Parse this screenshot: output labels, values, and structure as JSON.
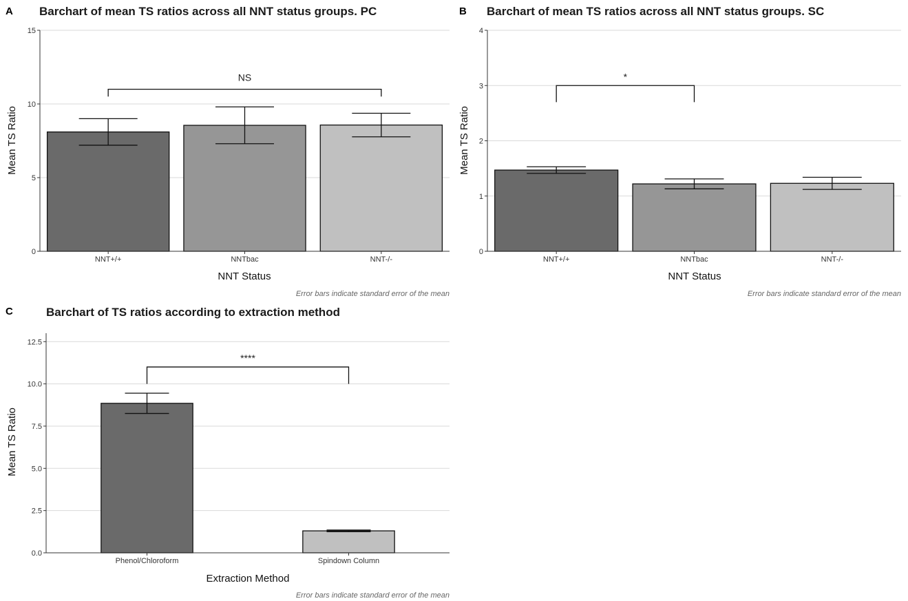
{
  "chart_data": [
    {
      "panel": "A",
      "type": "bar",
      "title": "Barchart of mean TS ratios across all NNT status groups. PC",
      "xlabel": "NNT Status",
      "ylabel": "Mean TS Ratio",
      "ylim": [
        0,
        15
      ],
      "yticks": [
        "0",
        "5",
        "10",
        "15"
      ],
      "categories": [
        "NNT+/+",
        "NNTbac",
        "NNT-/-"
      ],
      "values": [
        8.1,
        8.55,
        8.57
      ],
      "error": [
        0.9,
        1.25,
        0.8
      ],
      "bar_colors": [
        "#6a6a6a",
        "#969696",
        "#c0c0c0"
      ],
      "grid": "horizontal",
      "significance": {
        "label": "NS",
        "from": 0,
        "to": 2,
        "y": 11.0,
        "drop_to": 10.5
      },
      "caption": "Error bars indicate standard error of the mean"
    },
    {
      "panel": "B",
      "type": "bar",
      "title": "Barchart of mean TS ratios across all NNT status groups. SC",
      "xlabel": "NNT Status",
      "ylabel": "Mean TS Ratio",
      "ylim": [
        0,
        4
      ],
      "yticks": [
        "0",
        "1",
        "2",
        "3",
        "4"
      ],
      "categories": [
        "NNT+/+",
        "NNTbac",
        "NNT-/-"
      ],
      "values": [
        1.47,
        1.22,
        1.23
      ],
      "error": [
        0.06,
        0.09,
        0.11
      ],
      "bar_colors": [
        "#6a6a6a",
        "#969696",
        "#c0c0c0"
      ],
      "grid": "horizontal",
      "significance": {
        "label": "*",
        "from": 0,
        "to": 1,
        "y": 3.0,
        "drop_to": 2.7
      },
      "caption": "Error bars indicate standard error of the mean"
    },
    {
      "panel": "C",
      "type": "bar",
      "title": "Barchart of TS ratios according to extraction method",
      "xlabel": "Extraction Method",
      "ylabel": "Mean TS Ratio",
      "ylim": [
        0,
        13
      ],
      "yticks": [
        "0.0",
        "2.5",
        "5.0",
        "7.5",
        "10.0",
        "12.5"
      ],
      "categories": [
        "Phenol/Chloroform",
        "Spindown Column"
      ],
      "values": [
        8.85,
        1.3
      ],
      "error": [
        0.6,
        0.05
      ],
      "bar_colors": [
        "#6a6a6a",
        "#c0c0c0"
      ],
      "grid": "horizontal",
      "significance": {
        "label": "****",
        "from": 0,
        "to": 1,
        "y": 11.0,
        "drop_to": 10.0
      },
      "caption": "Error bars indicate standard error of the mean"
    }
  ]
}
